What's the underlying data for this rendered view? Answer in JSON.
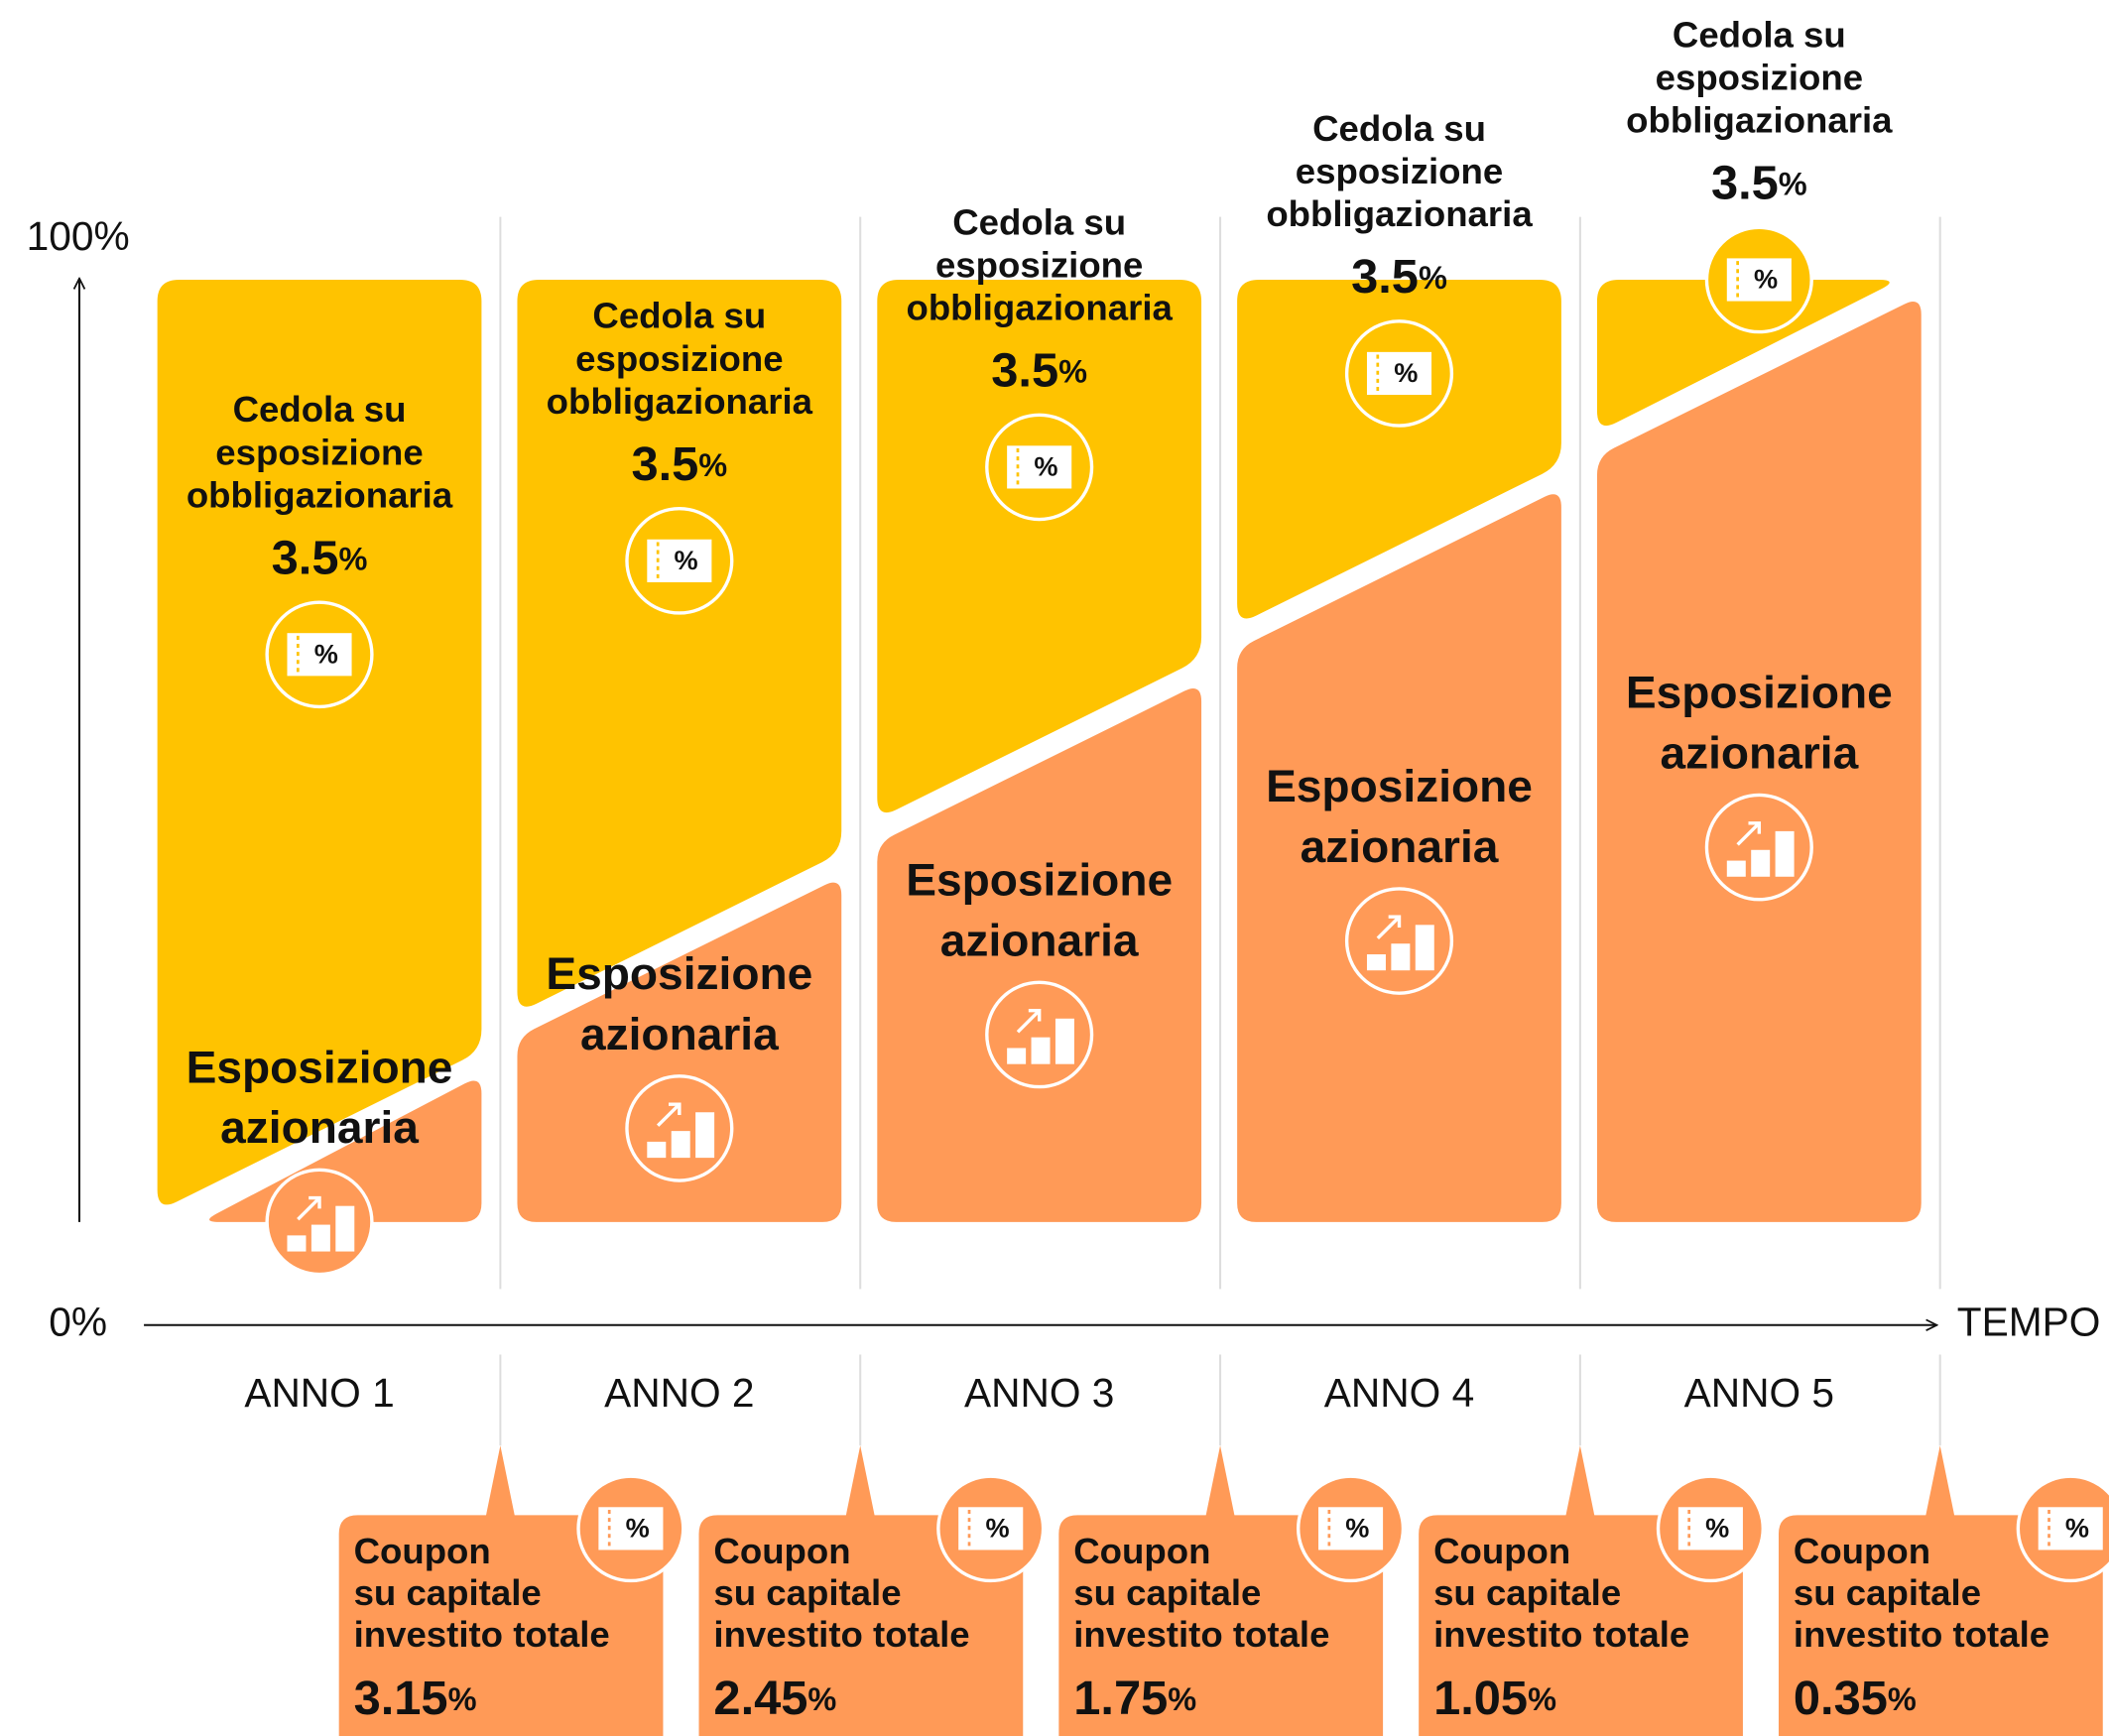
{
  "axis": {
    "top": "100%",
    "bottom": "0%",
    "x_label": "TEMPO"
  },
  "years": [
    {
      "label": "ANNO 1",
      "bond": {
        "label": [
          "Cedola su",
          "esposizione",
          "obbligazionaria"
        ],
        "rate": "3.5",
        "unit": "%"
      },
      "equity": {
        "label": [
          "Esposizione",
          "azionaria"
        ]
      },
      "coupon": {
        "label": [
          "Coupon",
          "su capitale",
          "investito totale"
        ],
        "rate": "3.15",
        "unit": "%"
      }
    },
    {
      "label": "ANNO 2",
      "bond": {
        "label": [
          "Cedola su",
          "esposizione",
          "obbligazionaria"
        ],
        "rate": "3.5",
        "unit": "%"
      },
      "equity": {
        "label": [
          "Esposizione",
          "azionaria"
        ]
      },
      "coupon": {
        "label": [
          "Coupon",
          "su capitale",
          "investito totale"
        ],
        "rate": "2.45",
        "unit": "%"
      }
    },
    {
      "label": "ANNO 3",
      "bond": {
        "label": [
          "Cedola su",
          "esposizione",
          "obbligazionaria"
        ],
        "rate": "3.5",
        "unit": "%"
      },
      "equity": {
        "label": [
          "Esposizione",
          "azionaria"
        ]
      },
      "coupon": {
        "label": [
          "Coupon",
          "su capitale",
          "investito totale"
        ],
        "rate": "1.75",
        "unit": "%"
      }
    },
    {
      "label": "ANNO 4",
      "bond": {
        "label": [
          "Cedola su",
          "esposizione",
          "obbligazionaria"
        ],
        "rate": "3.5",
        "unit": "%"
      },
      "equity": {
        "label": [
          "Esposizione",
          "azionaria"
        ]
      },
      "coupon": {
        "label": [
          "Coupon",
          "su capitale",
          "investito totale"
        ],
        "rate": "1.05",
        "unit": "%"
      }
    },
    {
      "label": "ANNO 5",
      "bond": {
        "label": [
          "Cedola su",
          "esposizione",
          "obbligazionaria"
        ],
        "rate": "3.5",
        "unit": "%"
      },
      "equity": {
        "label": [
          "Esposizione",
          "azionaria"
        ]
      },
      "coupon": {
        "label": [
          "Coupon",
          "su capitale",
          "investito totale"
        ],
        "rate": "0.35",
        "unit": "%"
      }
    }
  ]
}
